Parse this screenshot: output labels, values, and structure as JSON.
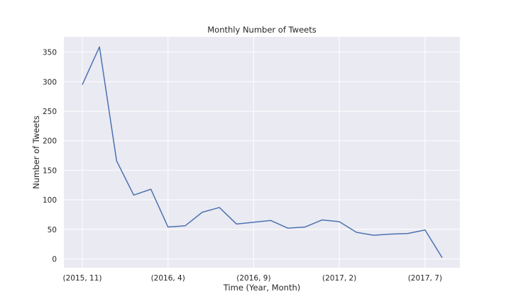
{
  "chart_data": {
    "type": "line",
    "title": "Monthly Number of Tweets",
    "xlabel": "Time (Year, Month)",
    "ylabel": "Number of Tweets",
    "grid": true,
    "x": [
      "(2015, 11)",
      "(2015, 12)",
      "(2016, 1)",
      "(2016, 2)",
      "(2016, 3)",
      "(2016, 4)",
      "(2016, 5)",
      "(2016, 6)",
      "(2016, 7)",
      "(2016, 8)",
      "(2016, 9)",
      "(2016, 10)",
      "(2016, 11)",
      "(2016, 12)",
      "(2017, 1)",
      "(2017, 2)",
      "(2017, 3)",
      "(2017, 4)",
      "(2017, 5)",
      "(2017, 6)",
      "(2017, 7)",
      "(2017, 8)"
    ],
    "x_ticks": [
      "(2015, 11)",
      "(2016, 4)",
      "(2016, 9)",
      "(2017, 2)",
      "(2017, 7)"
    ],
    "series": [
      {
        "values": [
          295,
          359,
          166,
          108,
          118,
          54,
          56,
          79,
          87,
          59,
          62,
          65,
          52,
          54,
          66,
          63,
          45,
          40,
          42,
          43,
          49,
          2
        ]
      }
    ],
    "ylim": [
      -15,
      376
    ],
    "y_ticks": [
      0,
      50,
      100,
      150,
      200,
      250,
      300,
      350
    ],
    "colors": {
      "line": "#4c72b0",
      "plot_background": "#eaeaf2",
      "grid": "#ffffff"
    }
  }
}
